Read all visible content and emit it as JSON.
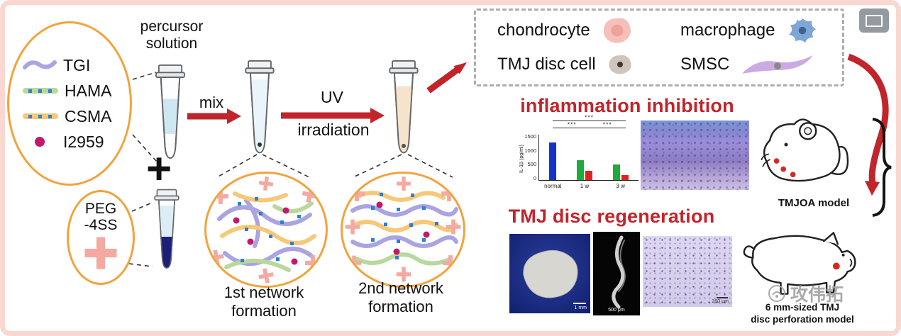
{
  "materials": {
    "items": [
      {
        "label": "TGI"
      },
      {
        "label": "HAMA"
      },
      {
        "label": "CSMA"
      },
      {
        "label": "I2959"
      }
    ]
  },
  "precursor_label": "percursor\nsolution",
  "plus_sign": "+",
  "peg_label": "PEG\n-4SS",
  "arrows": {
    "mix": "mix",
    "uv_line1": "UV",
    "uv_line2": "irradiation"
  },
  "networks": {
    "first": "1st network\nformation",
    "second": "2nd network\nformation"
  },
  "cell_legend": {
    "items": [
      {
        "label": "chondrocyte"
      },
      {
        "label": "macrophage"
      },
      {
        "label": "TMJ disc cell"
      },
      {
        "label": "SMSC"
      }
    ]
  },
  "sections": {
    "inflammation_title": "inflammation inhibition",
    "regeneration_title": "TMJ disc regeneration"
  },
  "chart_data": {
    "type": "bar",
    "title": "",
    "xlabel": "",
    "ylabel": "IL-1β (pg/ml)",
    "ylim": [
      0,
      1500
    ],
    "yticks_desc": [
      "1500",
      "1000",
      "500",
      "0"
    ],
    "grid": false,
    "legend_position": "none",
    "groups": [
      {
        "label": "normal",
        "bars": [
          {
            "color": "#1433cc",
            "value": 1250
          }
        ]
      },
      {
        "label": "1 w",
        "bars": [
          {
            "color": "#1faa3c",
            "value": 640
          },
          {
            "color": "#e02020",
            "value": 300
          }
        ]
      },
      {
        "label": "3 w",
        "bars": [
          {
            "color": "#1faa3c",
            "value": 520
          },
          {
            "color": "#e02020",
            "value": 160
          }
        ]
      }
    ],
    "significance": [
      "***",
      "***",
      "***"
    ]
  },
  "scale_bars": {
    "disc_photo": "1 mm",
    "fluorescence": "500 μm",
    "histology": "200 μm"
  },
  "models": {
    "mouse_caption": "TMJOA model",
    "pig_caption": "6 mm-sized TMJ\ndisc perforation model"
  },
  "watermark": {
    "text": "攻伟拓"
  },
  "colors": {
    "accent_red": "#c2242b",
    "oval_orange": "#f2a33c",
    "pink_cross": "#f4a9a2",
    "purple_strand": "#aaa4e2",
    "yellow_strand": "#f6c878",
    "green_strand": "#b8d89e",
    "magenta_dot": "#c2186e",
    "blue_square": "#2f7fd2",
    "navy_liquid": "#1b1f77",
    "peach_liquid": "#f6e3cb"
  }
}
